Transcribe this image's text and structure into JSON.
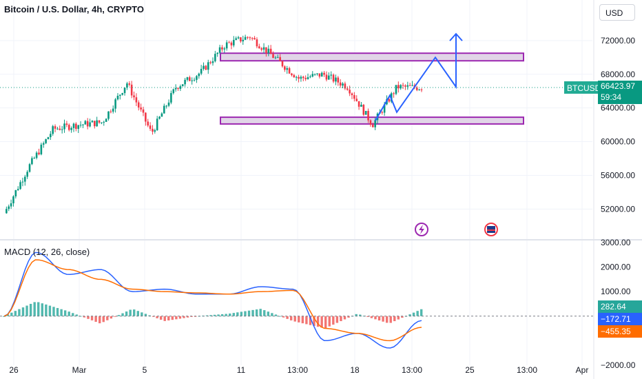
{
  "header": {
    "title": "Bitcoin / U.S. Dollar, 4h, CRYPTO",
    "currency_button": "USD"
  },
  "price_tags": {
    "ticker": "BTCUSD",
    "last_price": "66423.97",
    "countdown": "59:34"
  },
  "macd_panel": {
    "label": "MACD (12, 26, close)",
    "histogram_value": "282.64",
    "macd_value": "−172.71",
    "signal_value": "−455.35"
  },
  "colors": {
    "up": "#089981",
    "down": "#f23645",
    "macd_line": "#2962ff",
    "signal_line": "#ff6d00",
    "zone_fill": "#e1d5e7",
    "zone_border": "#9c27b0",
    "projection": "#2962ff"
  },
  "chart_data": [
    {
      "type": "candlestick",
      "title": "Bitcoin / U.S. Dollar, 4h, CRYPTO",
      "ylim": [
        49000,
        76000
      ],
      "y_ticks": [
        "72000.00",
        "68000.00",
        "64000.00",
        "60000.00",
        "56000.00",
        "52000.00"
      ],
      "x_ticks": [
        "26",
        "Mar",
        "5",
        "11",
        "13:00",
        "18",
        "13:00",
        "25",
        "13:00",
        "Apr"
      ],
      "approx_close_path": [
        {
          "t": "26",
          "close": 51500
        },
        {
          "t": "27",
          "close": 57000
        },
        {
          "t": "28",
          "close": 61500
        },
        {
          "t": "Mar",
          "close": 62000
        },
        {
          "t": "3",
          "close": 62300
        },
        {
          "t": "4",
          "close": 67000
        },
        {
          "t": "5",
          "close": 61000
        },
        {
          "t": "6",
          "close": 66500
        },
        {
          "t": "8",
          "close": 68200
        },
        {
          "t": "11",
          "close": 71500
        },
        {
          "t": "12",
          "close": 72500
        },
        {
          "t": "13:00",
          "close": 70000
        },
        {
          "t": "15",
          "close": 67500
        },
        {
          "t": "17",
          "close": 68000
        },
        {
          "t": "18",
          "close": 66500
        },
        {
          "t": "19",
          "close": 62000
        },
        {
          "t": "20",
          "close": 66500
        },
        {
          "t": "13:00",
          "close": 66423.97
        }
      ],
      "zones": [
        {
          "name": "resistance",
          "from": 69600,
          "to": 70500
        },
        {
          "name": "support",
          "from": 62100,
          "to": 62900
        }
      ],
      "projection_path": [
        {
          "t": "20",
          "price": 62500
        },
        {
          "t": "21",
          "price": 65500
        },
        {
          "t": "21",
          "price": 63500
        },
        {
          "t": "22",
          "price": 70000
        },
        {
          "t": "23",
          "price": 66500
        },
        {
          "t": "23",
          "price": 72800
        }
      ],
      "last_price": 66423.97
    },
    {
      "type": "line",
      "title": "MACD (12, 26, close)",
      "ylim": [
        -2000,
        3000
      ],
      "y_ticks": [
        "3000.00",
        "2000.00",
        "1000.00",
        "−2000.00"
      ],
      "series": [
        {
          "name": "MACD",
          "values": [
            0,
            2600,
            1700,
            1900,
            1000,
            1100,
            900,
            900,
            1200,
            1100,
            -1000,
            -700,
            -1300,
            -180
          ]
        },
        {
          "name": "Signal",
          "values": [
            0,
            2300,
            1900,
            1500,
            1100,
            1000,
            950,
            900,
            1000,
            1050,
            -500,
            -700,
            -1000,
            -455
          ]
        }
      ],
      "histogram": [
        0,
        600,
        200,
        -300,
        300,
        -200,
        0,
        100,
        300,
        -200,
        -500,
        100,
        -300,
        283
      ]
    }
  ]
}
